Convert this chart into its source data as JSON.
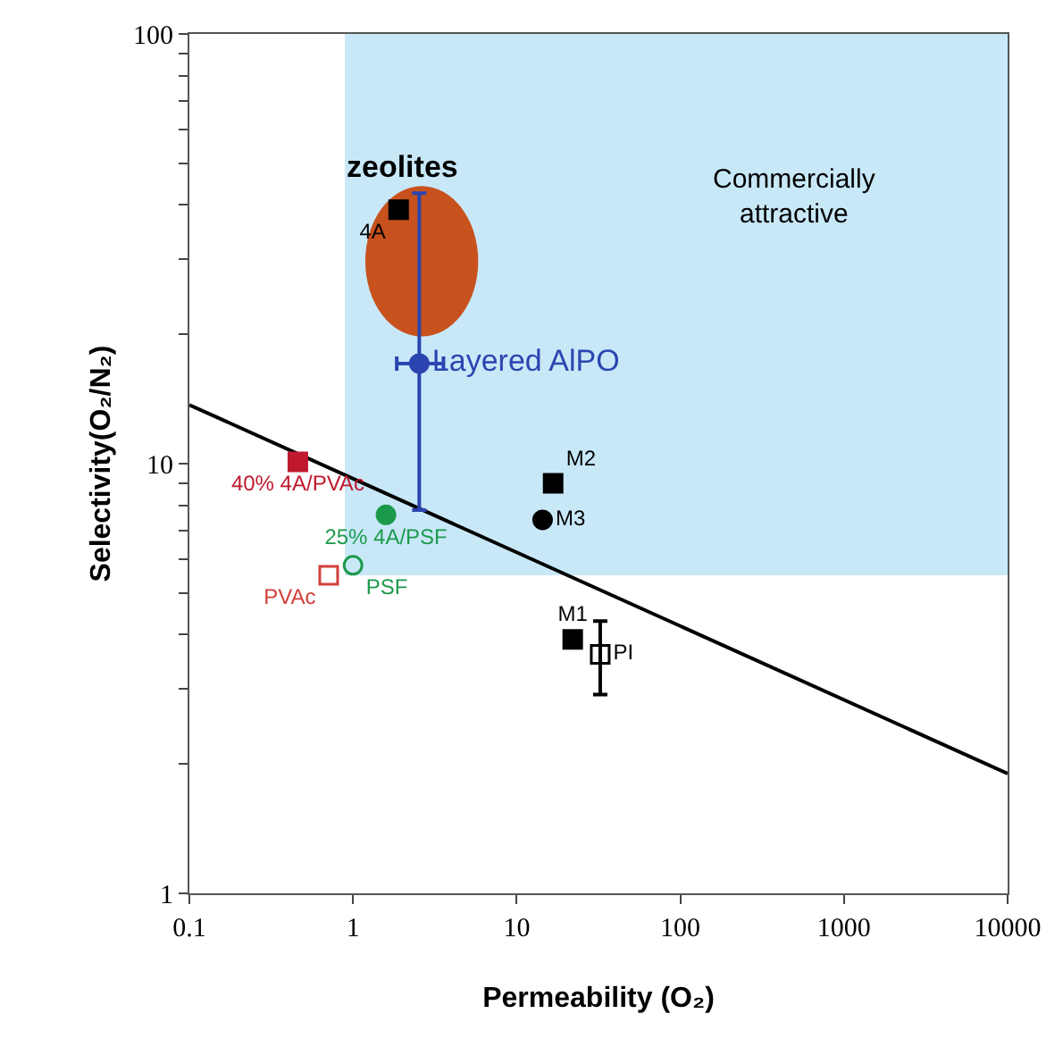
{
  "chart_data": {
    "type": "scatter",
    "xlabel": "Permeability (O₂)",
    "ylabel": "Selectivity(O₂/N₂)",
    "log": "xy",
    "xlim": [
      0.1,
      10000
    ],
    "ylim": [
      1,
      100
    ],
    "xticks": [
      0.1,
      1,
      10,
      100,
      1000,
      10000
    ],
    "yticks": [
      1,
      {
        "value": 2,
        "label": null
      },
      {
        "value": 3,
        "label": null
      },
      {
        "value": 4,
        "label": null
      },
      {
        "value": 5,
        "label": null
      },
      {
        "value": 6,
        "label": null
      },
      {
        "value": 7,
        "label": null
      },
      {
        "value": 8,
        "label": null
      },
      {
        "value": 9,
        "label": null
      },
      10,
      {
        "value": 20,
        "label": null
      },
      {
        "value": 30,
        "label": null
      },
      {
        "value": 40,
        "label": null
      },
      {
        "value": 50,
        "label": null
      },
      {
        "value": 60,
        "label": null
      },
      {
        "value": 70,
        "label": null
      },
      {
        "value": 80,
        "label": null
      },
      {
        "value": 90,
        "label": null
      },
      100
    ],
    "grid": false,
    "annotations": [
      "zeolites",
      "Commercially attractive"
    ],
    "series": [
      {
        "type": "line",
        "color": "#000000",
        "x": [
          0.1,
          10000
        ],
        "values": [
          13.7,
          1.9
        ],
        "marker": "none",
        "line_style": "solid"
      },
      {
        "name": "Layered AlPO",
        "color": "#2b45b0",
        "x": [
          2.54
        ],
        "values": [
          17.1
        ],
        "errors": [
          [
            7.8,
            42.6
          ]
        ],
        "xerrors": [
          [
            1.85,
            3.57
          ]
        ],
        "marker": "circle"
      },
      {
        "name": "4A",
        "color": "#000000",
        "x": [
          1.9
        ],
        "values": [
          39
        ],
        "marker": "square"
      },
      {
        "name": "40% 4A/PVAc",
        "color": "#c0182e",
        "x": [
          0.46
        ],
        "values": [
          10.1
        ],
        "marker": "square"
      },
      {
        "name": "25% 4A/PSF",
        "color": "#1c9a4c",
        "x": [
          1.59
        ],
        "values": [
          7.6
        ],
        "marker": "circle"
      },
      {
        "name": "PSF",
        "color": "#1c9a4c",
        "x": [
          1.0
        ],
        "values": [
          5.8
        ],
        "marker": "circle"
      },
      {
        "name": "PVAc",
        "color": "#d0403a",
        "x": [
          0.71
        ],
        "values": [
          5.5
        ],
        "marker": "square"
      },
      {
        "name": "M2",
        "color": "#000000",
        "x": [
          16.7
        ],
        "values": [
          9.0
        ],
        "marker": "square"
      },
      {
        "name": "M3",
        "color": "#000000",
        "x": [
          14.4
        ],
        "values": [
          7.4
        ],
        "marker": "circle"
      },
      {
        "name": "M1",
        "color": "#000000",
        "x": [
          22
        ],
        "values": [
          3.9
        ],
        "marker": "square"
      },
      {
        "name": "PI",
        "color": "#000000",
        "x": [
          32.4
        ],
        "values": [
          3.6
        ],
        "errors": [
          [
            2.9,
            4.3
          ]
        ],
        "marker": "square"
      }
    ]
  }
}
